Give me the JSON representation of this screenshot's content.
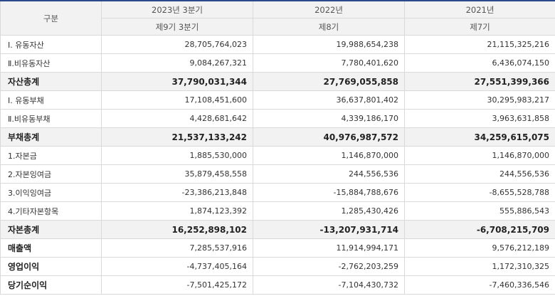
{
  "header": {
    "label": "구분",
    "periods": [
      {
        "year": "2023년 3분기",
        "term": "제9기 3분기"
      },
      {
        "year": "2022년",
        "term": "제8기"
      },
      {
        "year": "2021년",
        "term": "제7기"
      }
    ]
  },
  "rows": [
    {
      "label": "Ⅰ. 유동자산",
      "values": [
        "28,705,764,023",
        "19,988,654,238",
        "21,115,325,216"
      ],
      "style": "normal"
    },
    {
      "label": "Ⅱ.비유동자산",
      "values": [
        "9,084,267,321",
        "7,780,401,620",
        "6,436,074,150"
      ],
      "style": "normal"
    },
    {
      "label": "자산총계",
      "values": [
        "37,790,031,344",
        "27,769,055,858",
        "27,551,399,366"
      ],
      "style": "total"
    },
    {
      "label": "Ⅰ. 유동부채",
      "values": [
        "17,108,451,600",
        "36,637,801,402",
        "30,295,983,217"
      ],
      "style": "normal"
    },
    {
      "label": "Ⅱ.비유동부채",
      "values": [
        "4,428,681,642",
        "4,339,186,170",
        "3,963,631,858"
      ],
      "style": "normal"
    },
    {
      "label": "부채총계",
      "values": [
        "21,537,133,242",
        "40,976,987,572",
        "34,259,615,075"
      ],
      "style": "total"
    },
    {
      "label": "1.자본금",
      "values": [
        "1,885,530,000",
        "1,146,870,000",
        "1,146,870,000"
      ],
      "style": "normal"
    },
    {
      "label": "2.자본잉여금",
      "values": [
        "35,879,458,558",
        "244,556,536",
        "244,556,536"
      ],
      "style": "normal"
    },
    {
      "label": "3.이익잉여금",
      "values": [
        "-23,386,213,848",
        "-15,884,788,676",
        "-8,655,528,788"
      ],
      "style": "normal"
    },
    {
      "label": "4.기타자본항목",
      "values": [
        "1,874,123,392",
        "1,285,430,426",
        "555,886,543"
      ],
      "style": "normal"
    },
    {
      "label": "자본총계",
      "values": [
        "16,252,898,102",
        "-13,207,931,714",
        "-6,708,215,709"
      ],
      "style": "total"
    },
    {
      "label": "매출액",
      "values": [
        "7,285,537,916",
        "11,914,994,171",
        "9,576,212,189"
      ],
      "style": "bold"
    },
    {
      "label": "영업이익",
      "values": [
        "-4,737,405,164",
        "-2,762,203,259",
        "1,172,310,325"
      ],
      "style": "bold"
    },
    {
      "label": "당기순이익",
      "values": [
        "-7,501,425,172",
        "-7,104,430,732",
        "-7,460,336,546"
      ],
      "style": "bold"
    }
  ]
}
